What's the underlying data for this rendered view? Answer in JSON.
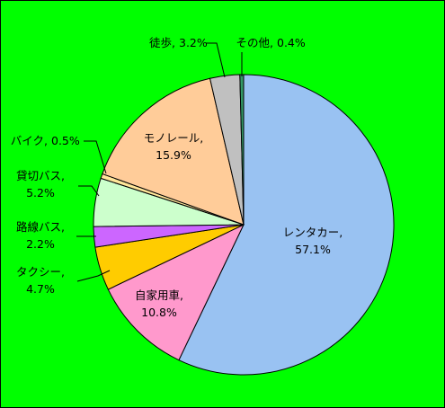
{
  "chart_data": {
    "type": "pie",
    "title": "",
    "background_color": "#00FF00",
    "start": "12 o'clock, clockwise",
    "slices": [
      {
        "name": "レンタカー",
        "value": 57.1,
        "label_name": "レンタカー,",
        "label_value": "57.1%",
        "color": "#99C2F2"
      },
      {
        "name": "自家用車",
        "value": 10.8,
        "label_name": "自家用車,",
        "label_value": "10.8%",
        "color": "#FF99CC"
      },
      {
        "name": "タクシー",
        "value": 4.7,
        "label_name": "タクシー,",
        "label_value": "4.7%",
        "color": "#FFCC00"
      },
      {
        "name": "路線バス",
        "value": 2.2,
        "label_name": "路線バス,",
        "label_value": "2.2%",
        "color": "#CC66FF"
      },
      {
        "name": "貸切バス",
        "value": 5.2,
        "label_name": "貸切バス,",
        "label_value": "5.2%",
        "color": "#CCFFCC"
      },
      {
        "name": "バイク",
        "value": 0.5,
        "label_name": "バイク,",
        "label_value": "0.5%",
        "color": "#FFE699"
      },
      {
        "name": "モノレール",
        "value": 15.9,
        "label_name": "モノレール,",
        "label_value": "15.9%",
        "color": "#FFCC99"
      },
      {
        "name": "徒歩",
        "value": 3.2,
        "label_name": "徒歩,",
        "label_value": "3.2%",
        "color": "#C0C0C0"
      },
      {
        "name": "その他",
        "value": 0.4,
        "label_name": "その他,",
        "label_value": "0.4%",
        "color": "#339966"
      }
    ]
  }
}
